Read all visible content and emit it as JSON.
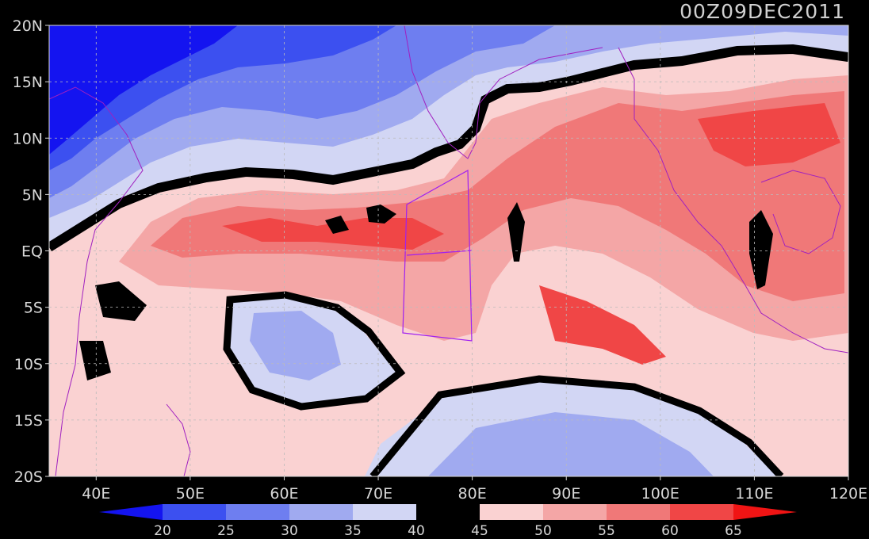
{
  "title": "00Z09DEC2011",
  "map": {
    "lon_range": [
      35,
      120
    ],
    "lat_range": [
      -20,
      20
    ],
    "lon_ticks": [
      {
        "value": 40,
        "label": "40E"
      },
      {
        "value": 50,
        "label": "50E"
      },
      {
        "value": 60,
        "label": "60E"
      },
      {
        "value": 70,
        "label": "70E"
      },
      {
        "value": 80,
        "label": "80E"
      },
      {
        "value": 90,
        "label": "90E"
      },
      {
        "value": 100,
        "label": "100E"
      },
      {
        "value": 110,
        "label": "110E"
      },
      {
        "value": 120,
        "label": "120E"
      }
    ],
    "lat_ticks": [
      {
        "value": 20,
        "label": "20N"
      },
      {
        "value": 15,
        "label": "15N"
      },
      {
        "value": 10,
        "label": "10N"
      },
      {
        "value": 5,
        "label": "5N"
      },
      {
        "value": 0,
        "label": "EQ"
      },
      {
        "value": -5,
        "label": "5S"
      },
      {
        "value": -10,
        "label": "10S"
      },
      {
        "value": -15,
        "label": "15S"
      },
      {
        "value": -20,
        "label": "20S"
      }
    ],
    "grid": true,
    "coastline_color": "#a020c0",
    "box_color": "#a020f0"
  },
  "colorbar": {
    "levels": [
      {
        "label": "20"
      },
      {
        "label": "25"
      },
      {
        "label": "30"
      },
      {
        "label": "35"
      },
      {
        "label": "40"
      },
      {
        "label": "45"
      },
      {
        "label": "50"
      },
      {
        "label": "55"
      },
      {
        "label": "60"
      },
      {
        "label": "65"
      }
    ],
    "colors": [
      "#1414f0",
      "#3c50f0",
      "#6e7ef0",
      "#a0aaf0",
      "#d2d6f4",
      "#000000",
      "#fad2d2",
      "#f4a6a6",
      "#f07878",
      "#f04646",
      "#f01414"
    ]
  }
}
